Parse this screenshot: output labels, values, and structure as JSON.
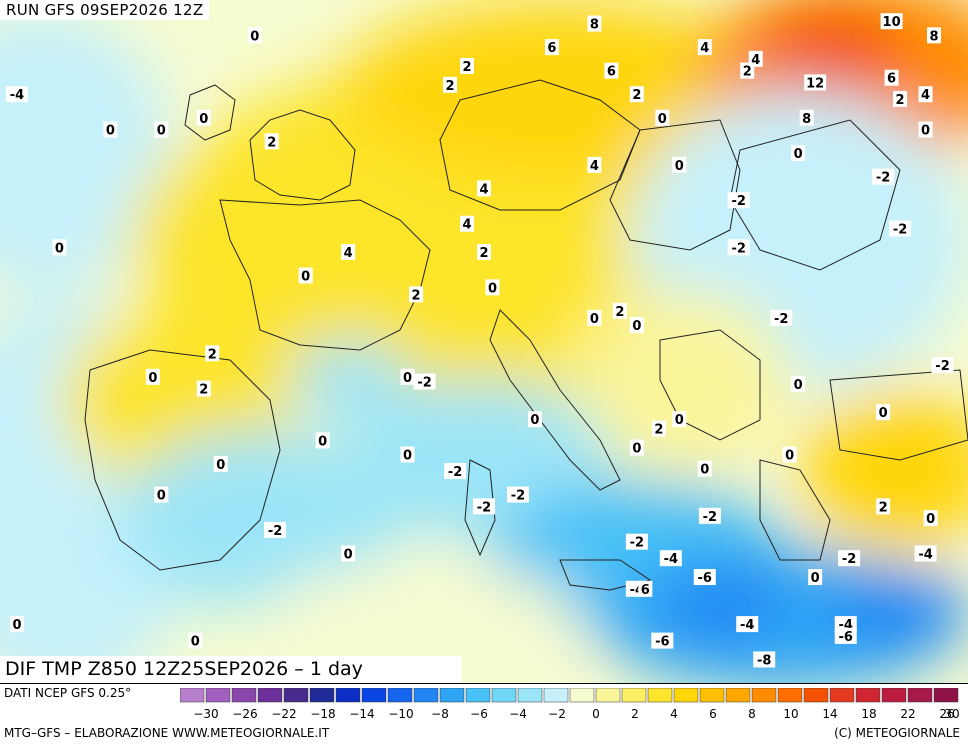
{
  "header": {
    "run_label": "RUN GFS 09SEP2026 12Z"
  },
  "map": {
    "title": "DIF TMP Z850 12Z25SEP2026 – 1 day",
    "units_note": "",
    "value_labels": [
      {
        "text": "0",
        "lon": -6.0,
        "lat": 58.0
      },
      {
        "text": "8",
        "lon": 14.0,
        "lat": 58.5
      },
      {
        "text": "6",
        "lon": 11.5,
        "lat": 57.5
      },
      {
        "text": "6",
        "lon": 15.0,
        "lat": 56.5
      },
      {
        "text": "4",
        "lon": 20.5,
        "lat": 57.5
      },
      {
        "text": "4",
        "lon": 23.5,
        "lat": 57.0
      },
      {
        "text": "2",
        "lon": 23.0,
        "lat": 56.5
      },
      {
        "text": "2",
        "lon": 6.5,
        "lat": 56.7
      },
      {
        "text": "2",
        "lon": 5.5,
        "lat": 55.9
      },
      {
        "text": "10",
        "lon": 31.5,
        "lat": 58.6
      },
      {
        "text": "8",
        "lon": 34.0,
        "lat": 58.0
      },
      {
        "text": "12",
        "lon": 27.0,
        "lat": 56.0
      },
      {
        "text": "6",
        "lon": 31.5,
        "lat": 56.2
      },
      {
        "text": "4",
        "lon": 33.5,
        "lat": 55.5
      },
      {
        "text": "2",
        "lon": 32.0,
        "lat": 55.3
      },
      {
        "text": "2",
        "lon": 16.5,
        "lat": 55.5
      },
      {
        "text": "0",
        "lon": 18.0,
        "lat": 54.5
      },
      {
        "text": "8",
        "lon": 26.5,
        "lat": 54.5
      },
      {
        "text": "0",
        "lon": 33.5,
        "lat": 54.0
      },
      {
        "text": "-4",
        "lon": -20.0,
        "lat": 55.5
      },
      {
        "text": "0",
        "lon": -14.5,
        "lat": 54.0
      },
      {
        "text": "0",
        "lon": -11.5,
        "lat": 54.0
      },
      {
        "text": "0",
        "lon": -9.0,
        "lat": 54.5
      },
      {
        "text": "2",
        "lon": -5.0,
        "lat": 53.5
      },
      {
        "text": "0",
        "lon": 26.0,
        "lat": 53.0
      },
      {
        "text": "4",
        "lon": 14.0,
        "lat": 52.5
      },
      {
        "text": "0",
        "lon": 19.0,
        "lat": 52.5
      },
      {
        "text": "-2",
        "lon": 31.0,
        "lat": 52.0
      },
      {
        "text": "4",
        "lon": 7.5,
        "lat": 51.5
      },
      {
        "text": "-2",
        "lon": 22.5,
        "lat": 51.0
      },
      {
        "text": "4",
        "lon": 6.5,
        "lat": 50.0
      },
      {
        "text": "-2",
        "lon": 32.0,
        "lat": 49.8
      },
      {
        "text": "0",
        "lon": -17.5,
        "lat": 49.0
      },
      {
        "text": "4",
        "lon": -0.5,
        "lat": 48.8
      },
      {
        "text": "2",
        "lon": 7.5,
        "lat": 48.8
      },
      {
        "text": "-2",
        "lon": 22.5,
        "lat": 49.0
      },
      {
        "text": "0",
        "lon": -3.0,
        "lat": 47.8
      },
      {
        "text": "0",
        "lon": 8.0,
        "lat": 47.3
      },
      {
        "text": "2",
        "lon": 3.5,
        "lat": 47.0
      },
      {
        "text": "2",
        "lon": 15.5,
        "lat": 46.3
      },
      {
        "text": "0",
        "lon": 14.0,
        "lat": 46.0
      },
      {
        "text": "0",
        "lon": 16.5,
        "lat": 45.7
      },
      {
        "text": "-2",
        "lon": 25.0,
        "lat": 46.0
      },
      {
        "text": "2",
        "lon": -8.5,
        "lat": 44.5
      },
      {
        "text": "-2",
        "lon": 34.5,
        "lat": 44.0
      },
      {
        "text": "0",
        "lon": -12.0,
        "lat": 43.5
      },
      {
        "text": "0",
        "lon": 3.0,
        "lat": 43.5
      },
      {
        "text": "-2",
        "lon": 4.0,
        "lat": 43.3
      },
      {
        "text": "2",
        "lon": -9.0,
        "lat": 43.0
      },
      {
        "text": "0",
        "lon": 26.0,
        "lat": 43.2
      },
      {
        "text": "0",
        "lon": 31.0,
        "lat": 42.0
      },
      {
        "text": "0",
        "lon": 10.5,
        "lat": 41.7
      },
      {
        "text": "2",
        "lon": 17.8,
        "lat": 41.3
      },
      {
        "text": "0",
        "lon": 19.0,
        "lat": 41.7
      },
      {
        "text": "0",
        "lon": -2.0,
        "lat": 40.8
      },
      {
        "text": "0",
        "lon": 16.5,
        "lat": 40.5
      },
      {
        "text": "0",
        "lon": 3.0,
        "lat": 40.2
      },
      {
        "text": "0",
        "lon": -8.0,
        "lat": 39.8
      },
      {
        "text": "0",
        "lon": 25.5,
        "lat": 40.2
      },
      {
        "text": "-2",
        "lon": 5.8,
        "lat": 39.5
      },
      {
        "text": "0",
        "lon": 20.5,
        "lat": 39.6
      },
      {
        "text": "0",
        "lon": -11.5,
        "lat": 38.5
      },
      {
        "text": "-2",
        "lon": 7.5,
        "lat": 38.0
      },
      {
        "text": "-2",
        "lon": 9.5,
        "lat": 38.5
      },
      {
        "text": "-2",
        "lon": 20.8,
        "lat": 37.6
      },
      {
        "text": "2",
        "lon": 31.0,
        "lat": 38.0
      },
      {
        "text": "0",
        "lon": 33.8,
        "lat": 37.5
      },
      {
        "text": "-2",
        "lon": -4.8,
        "lat": 37.0
      },
      {
        "text": "-2",
        "lon": 16.5,
        "lat": 36.5
      },
      {
        "text": "-4",
        "lon": 18.5,
        "lat": 35.8
      },
      {
        "text": "-2",
        "lon": 29.0,
        "lat": 35.8
      },
      {
        "text": "-4",
        "lon": 33.5,
        "lat": 36.0
      },
      {
        "text": "0",
        "lon": -0.5,
        "lat": 36.0
      },
      {
        "text": "-6",
        "lon": 20.5,
        "lat": 35.0
      },
      {
        "text": "0",
        "lon": 27.0,
        "lat": 35.0
      },
      {
        "text": "-4",
        "lon": 16.5,
        "lat": 34.5
      },
      {
        "text": "6",
        "lon": 17.0,
        "lat": 34.5
      },
      {
        "text": "-4",
        "lon": 23.0,
        "lat": 33.0
      },
      {
        "text": "-4",
        "lon": 28.8,
        "lat": 33.0
      },
      {
        "text": "-6",
        "lon": 28.8,
        "lat": 32.5
      },
      {
        "text": "0",
        "lon": -20.0,
        "lat": 33.0
      },
      {
        "text": "-6",
        "lon": 18.0,
        "lat": 32.3
      },
      {
        "text": "0",
        "lon": -9.5,
        "lat": 32.3
      },
      {
        "text": "-8",
        "lon": 24.0,
        "lat": 31.5
      }
    ]
  },
  "footer": {
    "data_source": "DATI NCEP GFS 0.25°",
    "credits_left": "MTG–GFS – ELABORAZIONE WWW.METEOGIORNALE.IT",
    "credits_right": "(C) METEOGIORNALE"
  },
  "colorbar": {
    "colors": [
      "#b77fcd",
      "#a05fbc",
      "#8a46aa",
      "#6d2f9a",
      "#472a8e",
      "#1f2b99",
      "#0b2ec4",
      "#0a45e3",
      "#1566ef",
      "#2186f4",
      "#2fa6f5",
      "#47c1f6",
      "#6fd6f6",
      "#9be5f8",
      "#c6f1fb",
      "#f6fbd0",
      "#fbf59a",
      "#fbee63",
      "#fde52c",
      "#fed609",
      "#ffc000",
      "#ffa600",
      "#ff8b00",
      "#ff6f00",
      "#f45200",
      "#e33b1f",
      "#cf2631",
      "#bb1c3f",
      "#a8194b",
      "#901347"
    ],
    "ticks": [
      "−30",
      "−26",
      "−22",
      "−18",
      "−14",
      "−10",
      "−8",
      "−6",
      "−4",
      "−2",
      "0",
      "2",
      "4",
      "6",
      "8",
      "10",
      "14",
      "18",
      "22",
      "26",
      "30"
    ]
  }
}
